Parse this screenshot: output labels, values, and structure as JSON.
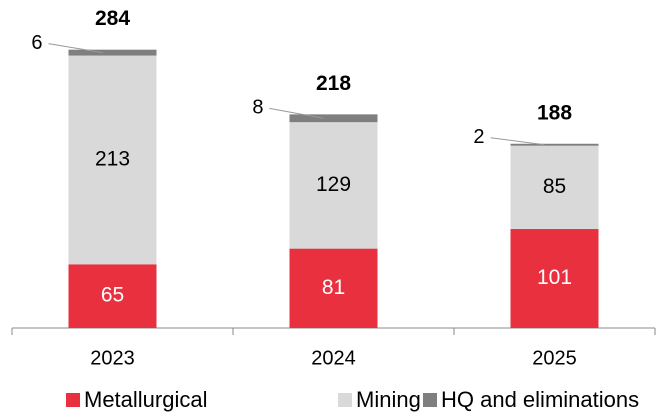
{
  "chart_data": {
    "type": "stacked_bar",
    "categories": [
      "2023",
      "2024",
      "2025"
    ],
    "series": [
      {
        "name": "Metallurgical",
        "color": "#e8303f",
        "values": [
          65,
          81,
          101
        ]
      },
      {
        "name": "Mining",
        "color": "#d9d9d9",
        "values": [
          213,
          129,
          85
        ]
      },
      {
        "name": "HQ and eliminations",
        "color": "#7f7f7f",
        "values": [
          6,
          8,
          2
        ]
      }
    ],
    "totals": [
      284,
      218,
      188
    ],
    "legend": "bottom"
  }
}
